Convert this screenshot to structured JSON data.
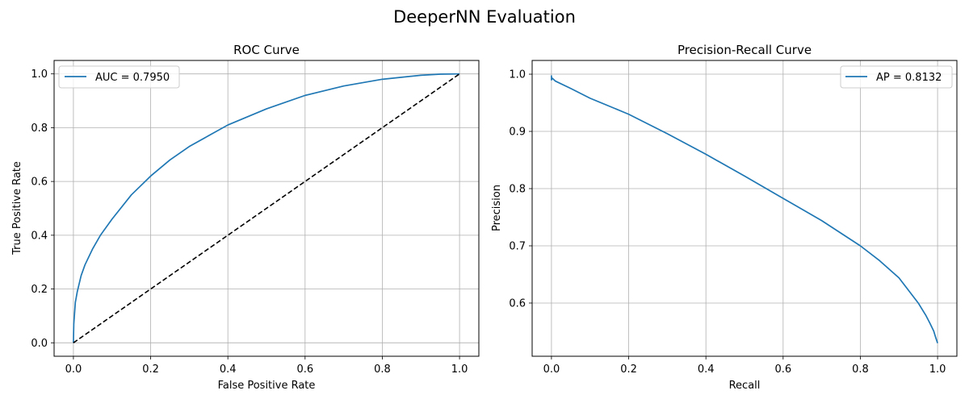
{
  "figure": {
    "title": "DeeperNN Evaluation"
  },
  "chart_data": [
    {
      "type": "line",
      "title": "ROC Curve",
      "xlabel": "False Positive Rate",
      "ylabel": "True Positive Rate",
      "xlim": [
        -0.05,
        1.05
      ],
      "ylim": [
        -0.05,
        1.05
      ],
      "xticks": [
        0.0,
        0.2,
        0.4,
        0.6,
        0.8,
        1.0
      ],
      "yticks": [
        0.0,
        0.2,
        0.4,
        0.6,
        0.8,
        1.0
      ],
      "xtick_labels": [
        "0.0",
        "0.2",
        "0.4",
        "0.6",
        "0.8",
        "1.0"
      ],
      "ytick_labels": [
        "0.0",
        "0.2",
        "0.4",
        "0.6",
        "0.8",
        "1.0"
      ],
      "grid": true,
      "legend_position": "upper-left",
      "series": [
        {
          "name": "AUC = 0.7950",
          "color": "#1f77b4",
          "style": "solid",
          "x": [
            0.0,
            0.001,
            0.005,
            0.01,
            0.02,
            0.03,
            0.05,
            0.07,
            0.1,
            0.15,
            0.2,
            0.25,
            0.3,
            0.35,
            0.4,
            0.5,
            0.6,
            0.7,
            0.8,
            0.9,
            0.95,
            1.0
          ],
          "y": [
            0.0,
            0.07,
            0.15,
            0.19,
            0.25,
            0.29,
            0.35,
            0.4,
            0.46,
            0.55,
            0.62,
            0.68,
            0.73,
            0.77,
            0.81,
            0.87,
            0.92,
            0.955,
            0.98,
            0.995,
            0.999,
            1.0
          ]
        },
        {
          "name": "",
          "color": "#000000",
          "style": "dashed",
          "x": [
            0.0,
            1.0
          ],
          "y": [
            0.0,
            1.0
          ]
        }
      ]
    },
    {
      "type": "line",
      "title": "Precision-Recall Curve",
      "xlabel": "Recall",
      "ylabel": "Precision",
      "xlim": [
        -0.05,
        1.05
      ],
      "ylim": [
        0.507,
        1.024
      ],
      "xticks": [
        0.0,
        0.2,
        0.4,
        0.6,
        0.8,
        1.0
      ],
      "yticks": [
        0.6,
        0.7,
        0.8,
        0.9,
        1.0
      ],
      "xtick_labels": [
        "0.0",
        "0.2",
        "0.4",
        "0.6",
        "0.8",
        "1.0"
      ],
      "ytick_labels": [
        "0.6",
        "0.7",
        "0.8",
        "0.9",
        "1.0"
      ],
      "grid": true,
      "legend_position": "upper-right",
      "series": [
        {
          "name": "AP = 0.8132",
          "color": "#1f77b4",
          "style": "solid",
          "x": [
            0.0,
            0.0,
            0.002,
            0.01,
            0.05,
            0.1,
            0.2,
            0.3,
            0.4,
            0.5,
            0.6,
            0.7,
            0.8,
            0.85,
            0.9,
            0.95,
            0.97,
            0.98,
            0.99,
            0.995,
            1.0
          ],
          "y": [
            0.998,
            0.99,
            0.993,
            0.988,
            0.975,
            0.958,
            0.93,
            0.896,
            0.86,
            0.822,
            0.783,
            0.744,
            0.7,
            0.674,
            0.644,
            0.6,
            0.578,
            0.565,
            0.551,
            0.54,
            0.53
          ]
        }
      ]
    }
  ]
}
